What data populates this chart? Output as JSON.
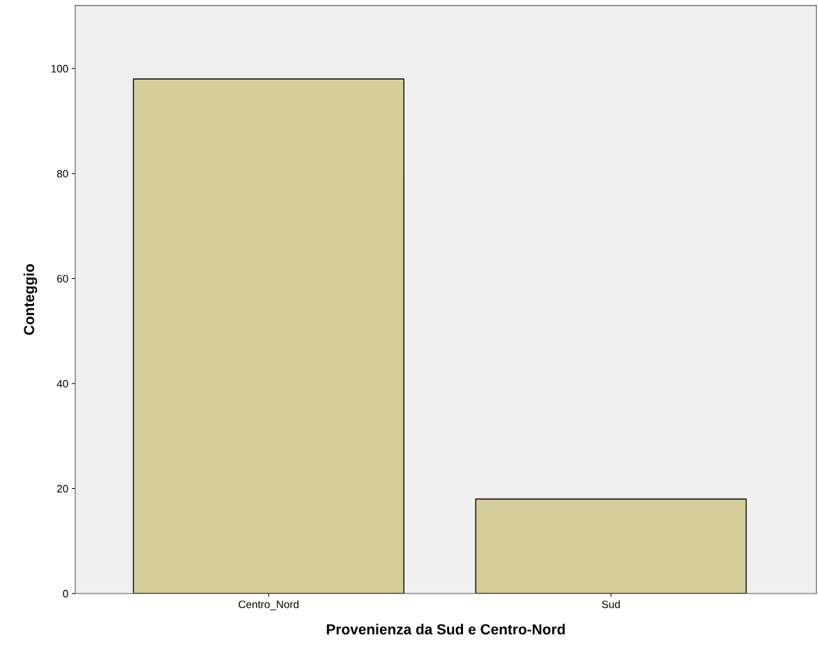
{
  "chart_data": {
    "type": "bar",
    "xlabel": "Provenienza da Sud e Centro-Nord",
    "ylabel": "Conteggio",
    "categories": [
      "Centro_Nord",
      "Sud"
    ],
    "values": [
      98,
      18
    ],
    "color": "#d3ce9a",
    "ylim": [
      0,
      112
    ],
    "yticks": [
      0,
      20,
      40,
      60,
      80,
      100
    ],
    "grid": false
  }
}
